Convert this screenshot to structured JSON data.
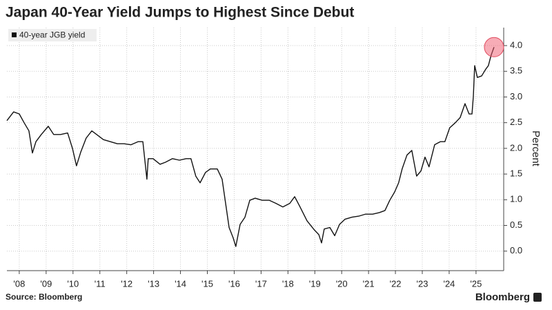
{
  "chart_data": {
    "type": "line",
    "title": "Japan 40-Year Yield Jumps to Highest Since Debut",
    "y_label": "Percent",
    "source": "Source: Bloomberg",
    "brand": "Bloomberg",
    "legend": "top-left",
    "grid": true,
    "xlim": [
      2007.54,
      2026.03
    ],
    "ylim": [
      -0.38,
      4.35
    ],
    "xticks": [
      {
        "value": 2008,
        "label": "'08"
      },
      {
        "value": 2009,
        "label": "'09"
      },
      {
        "value": 2010,
        "label": "'10"
      },
      {
        "value": 2011,
        "label": "'11"
      },
      {
        "value": 2012,
        "label": "'12"
      },
      {
        "value": 2013,
        "label": "'13"
      },
      {
        "value": 2014,
        "label": "'14"
      },
      {
        "value": 2015,
        "label": "'15"
      },
      {
        "value": 2016,
        "label": "'16"
      },
      {
        "value": 2017,
        "label": "'17"
      },
      {
        "value": 2018,
        "label": "'18"
      },
      {
        "value": 2019,
        "label": "'19"
      },
      {
        "value": 2020,
        "label": "'20"
      },
      {
        "value": 2021,
        "label": "'21"
      },
      {
        "value": 2022,
        "label": "'22"
      },
      {
        "value": 2023,
        "label": "'23"
      },
      {
        "value": 2024,
        "label": "'24"
      },
      {
        "value": 2025,
        "label": "'25"
      }
    ],
    "yticks": [
      {
        "value": 0,
        "label": "0.0"
      },
      0.5,
      {
        "value": 1,
        "label": "1.0"
      },
      1.5,
      {
        "value": 2,
        "label": "2.0"
      },
      2.5,
      {
        "value": 3,
        "label": "3.0"
      },
      3.5,
      {
        "value": 4,
        "label": "4.0"
      }
    ],
    "x": [
      2007.54,
      2007.79,
      2008.0,
      2008.18,
      2008.36,
      2008.49,
      2008.62,
      2008.82,
      2009.08,
      2009.28,
      2009.54,
      2009.8,
      2009.98,
      2010.13,
      2010.29,
      2010.49,
      2010.7,
      2010.88,
      2011.13,
      2011.39,
      2011.65,
      2011.9,
      2012.16,
      2012.42,
      2012.6,
      2012.75,
      2012.8,
      2012.98,
      2013.24,
      2013.44,
      2013.7,
      2013.96,
      2014.21,
      2014.39,
      2014.57,
      2014.73,
      2014.93,
      2015.11,
      2015.37,
      2015.55,
      2015.68,
      2015.81,
      2015.96,
      2016.06,
      2016.22,
      2016.4,
      2016.58,
      2016.78,
      2017.04,
      2017.3,
      2017.55,
      2017.81,
      2018.07,
      2018.25,
      2018.45,
      2018.71,
      2018.97,
      2019.15,
      2019.25,
      2019.35,
      2019.56,
      2019.74,
      2019.92,
      2020.12,
      2020.38,
      2020.63,
      2020.89,
      2021.15,
      2021.4,
      2021.61,
      2021.79,
      2021.97,
      2022.12,
      2022.25,
      2022.43,
      2022.61,
      2022.79,
      2022.95,
      2023.1,
      2023.25,
      2023.46,
      2023.67,
      2023.84,
      2024.02,
      2024.23,
      2024.41,
      2024.59,
      2024.74,
      2024.85,
      2024.9,
      2024.95,
      2025.05,
      2025.21,
      2025.36,
      2025.46,
      2025.56,
      2025.67
    ],
    "series": [
      {
        "name": "40-year JGB yield",
        "color": "#111111",
        "values": [
          2.54,
          2.71,
          2.67,
          2.5,
          2.34,
          1.91,
          2.13,
          2.27,
          2.43,
          2.27,
          2.27,
          2.3,
          2.0,
          1.66,
          1.93,
          2.2,
          2.34,
          2.27,
          2.17,
          2.13,
          2.09,
          2.09,
          2.07,
          2.13,
          2.13,
          1.4,
          1.8,
          1.8,
          1.69,
          1.73,
          1.8,
          1.77,
          1.8,
          1.8,
          1.46,
          1.33,
          1.53,
          1.6,
          1.6,
          1.4,
          0.93,
          0.46,
          0.26,
          0.09,
          0.52,
          0.66,
          0.99,
          1.03,
          0.99,
          0.99,
          0.93,
          0.86,
          0.93,
          1.06,
          0.86,
          0.59,
          0.42,
          0.32,
          0.16,
          0.43,
          0.46,
          0.3,
          0.52,
          0.62,
          0.66,
          0.68,
          0.72,
          0.72,
          0.75,
          0.79,
          0.99,
          1.15,
          1.33,
          1.6,
          1.87,
          1.96,
          1.46,
          1.56,
          1.83,
          1.64,
          2.07,
          2.13,
          2.13,
          2.4,
          2.5,
          2.6,
          2.87,
          2.67,
          2.67,
          3.01,
          3.61,
          3.38,
          3.41,
          3.54,
          3.61,
          3.81,
          3.97
        ]
      }
    ]
  }
}
